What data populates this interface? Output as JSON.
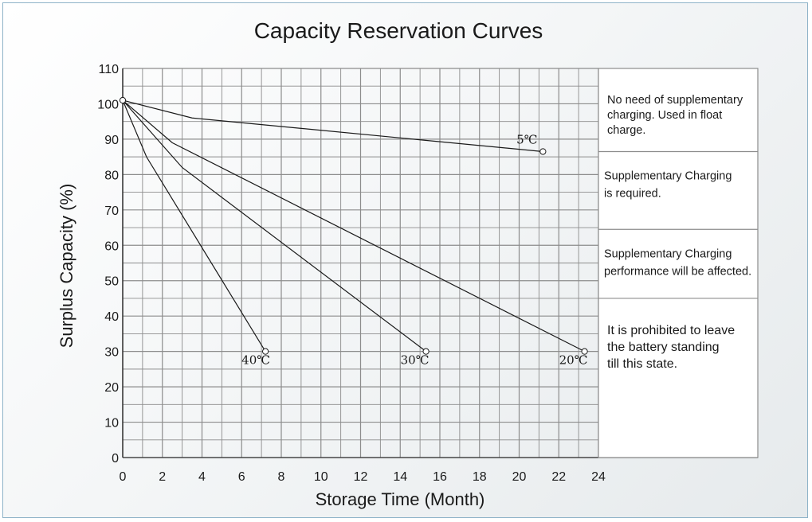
{
  "chart_data": {
    "type": "line",
    "title": "Capacity Reservation Curves",
    "xlabel": "Storage Time (Month)",
    "ylabel": "Surplus Capacity  (%)",
    "xlim": [
      0,
      24
    ],
    "ylim": [
      0,
      110
    ],
    "x_ticks": [
      "0",
      "2",
      "4",
      "6",
      "8",
      "10",
      "12",
      "14",
      "16",
      "18",
      "20",
      "22",
      "24"
    ],
    "y_ticks": [
      "0",
      "10",
      "20",
      "30",
      "40",
      "50",
      "60",
      "70",
      "80",
      "90",
      "100",
      "110"
    ],
    "grid": true,
    "series": [
      {
        "name": "5℃",
        "x": [
          0,
          3.5,
          21.2
        ],
        "y": [
          101,
          96,
          86.5
        ]
      },
      {
        "name": "20℃",
        "x": [
          0,
          2.5,
          23.3
        ],
        "y": [
          101,
          89,
          30
        ]
      },
      {
        "name": "30℃",
        "x": [
          0,
          3,
          15.3
        ],
        "y": [
          101,
          82,
          30
        ]
      },
      {
        "name": "40℃",
        "x": [
          0,
          1.2,
          7.2
        ],
        "y": [
          101,
          85,
          30
        ]
      }
    ],
    "zones": [
      {
        "y_range": [
          86.5,
          110
        ],
        "text": [
          "No need of supplementary",
          "charging. Used in float",
          "charge."
        ]
      },
      {
        "y_range": [
          64.5,
          86.5
        ],
        "text": [
          "Supplementary  Charging",
          "is required."
        ]
      },
      {
        "y_range": [
          45,
          64.5
        ],
        "text": [
          "Supplementary  Charging",
          "performance will be affected."
        ]
      },
      {
        "y_range": [
          0,
          45
        ],
        "text": [
          "It is prohibited to leave",
          "the battery standing",
          "till this state."
        ]
      }
    ]
  }
}
